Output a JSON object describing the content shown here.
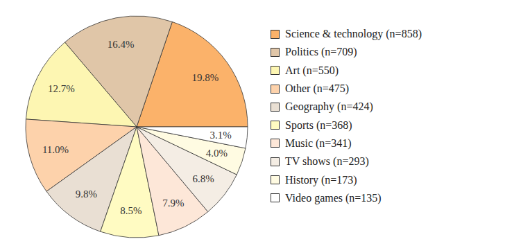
{
  "chart_data": {
    "type": "pie",
    "categories": [
      "Science & technology (n=858)",
      "Politics (n=709)",
      "Art (n=550)",
      "Other (n=475)",
      "Geography (n=424)",
      "Sports (n=368)",
      "Music (n=341)",
      "TV shows (n=293)",
      "History (n=173)",
      "Video games (n=135)"
    ],
    "values": [
      19.8,
      16.4,
      12.7,
      11.0,
      9.8,
      8.5,
      7.9,
      6.8,
      4.0,
      3.1
    ],
    "value_labels": [
      "19.8%",
      "16.4%",
      "12.7%",
      "11.0%",
      "9.8%",
      "8.5%",
      "7.9%",
      "6.8%",
      "4.0%",
      "3.1%"
    ],
    "colors": [
      "#fbb26a",
      "#e0c6a8",
      "#fdf6b2",
      "#fdd2ab",
      "#e9dfd3",
      "#fffbc2",
      "#fde7d8",
      "#f4ede4",
      "#fffbe2",
      "#ffffff"
    ],
    "data_labels": true,
    "legend": "right"
  }
}
